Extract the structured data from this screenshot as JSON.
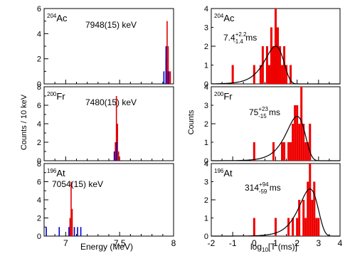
{
  "figure": {
    "left_ylabel": "Counts / 10 keV",
    "left_xlabel": "Energy (MeV)",
    "right_ylabel": "Counts",
    "right_xlabel": "log$_{10}$[T (ms)]"
  },
  "chart_data": [
    {
      "type": "bar",
      "panel": "energy",
      "nuclide": {
        "mass": "204",
        "symbol": "Ac"
      },
      "title": "7948(15) keV",
      "xlabel": "Energy (MeV)",
      "ylabel": "Counts / 10 keV",
      "xlim": [
        6.8,
        8.0
      ],
      "ylim": [
        0,
        6
      ],
      "bin_width": 0.01,
      "series": [
        {
          "color": "#e00000",
          "bins": [
            {
              "x": 7.93,
              "y": 2
            },
            {
              "x": 7.94,
              "y": 5
            },
            {
              "x": 7.95,
              "y": 3
            },
            {
              "x": 7.96,
              "y": 1
            },
            {
              "x": 7.97,
              "y": 1
            }
          ]
        },
        {
          "color": "#0000cc",
          "bins": [
            {
              "x": 7.91,
              "y": 1
            },
            {
              "x": 7.93,
              "y": 3
            },
            {
              "x": 7.95,
              "y": 1
            }
          ]
        }
      ]
    },
    {
      "type": "bar",
      "panel": "energy",
      "nuclide": {
        "mass": "200",
        "symbol": "Fr"
      },
      "title": "7480(15) keV",
      "xlim": [
        6.8,
        8.0
      ],
      "ylim": [
        0,
        8
      ],
      "bin_width": 0.01,
      "series": [
        {
          "color": "#e00000",
          "bins": [
            {
              "x": 7.46,
              "y": 2
            },
            {
              "x": 7.47,
              "y": 7
            },
            {
              "x": 7.48,
              "y": 4
            },
            {
              "x": 7.49,
              "y": 1
            }
          ]
        },
        {
          "color": "#0000cc",
          "bins": [
            {
              "x": 7.45,
              "y": 1
            },
            {
              "x": 7.47,
              "y": 2
            }
          ]
        }
      ]
    },
    {
      "type": "bar",
      "panel": "energy",
      "nuclide": {
        "mass": "196",
        "symbol": "At"
      },
      "title": "7054(15) keV",
      "xlim": [
        6.8,
        8.0
      ],
      "ylim": [
        0,
        8
      ],
      "xticks": [
        "7",
        "7.5",
        "8"
      ],
      "bin_width": 0.01,
      "series": [
        {
          "color": "#e00000",
          "bins": [
            {
              "x": 7.04,
              "y": 2
            },
            {
              "x": 7.05,
              "y": 6
            },
            {
              "x": 7.06,
              "y": 3
            }
          ]
        },
        {
          "color": "#0000cc",
          "bins": [
            {
              "x": 6.82,
              "y": 1
            },
            {
              "x": 6.94,
              "y": 1
            },
            {
              "x": 7.03,
              "y": 1
            },
            {
              "x": 7.08,
              "y": 1
            },
            {
              "x": 7.11,
              "y": 1
            },
            {
              "x": 7.14,
              "y": 1
            }
          ]
        }
      ]
    },
    {
      "type": "bar",
      "panel": "lifetime",
      "nuclide": {
        "mass": "204",
        "symbol": "Ac"
      },
      "halflife": {
        "base": "7.4",
        "sup": "+2.2",
        "sub": "-1.4",
        "unit": "ms"
      },
      "ylabel": "Counts",
      "xlim": [
        -2,
        4
      ],
      "ylim": [
        0,
        4
      ],
      "bin_width": 0.1,
      "bins": [
        {
          "x": -1.0,
          "y": 1
        },
        {
          "x": 0.0,
          "y": 1
        },
        {
          "x": 0.3,
          "y": 1
        },
        {
          "x": 0.4,
          "y": 2
        },
        {
          "x": 0.6,
          "y": 2
        },
        {
          "x": 0.7,
          "y": 1
        },
        {
          "x": 0.8,
          "y": 3
        },
        {
          "x": 0.9,
          "y": 2
        },
        {
          "x": 1.0,
          "y": 4
        },
        {
          "x": 1.1,
          "y": 3
        },
        {
          "x": 1.2,
          "y": 2
        },
        {
          "x": 1.3,
          "y": 1
        },
        {
          "x": 1.4,
          "y": 2
        },
        {
          "x": 1.5,
          "y": 1
        },
        {
          "x": 1.7,
          "y": 1
        }
      ],
      "fit_peak": {
        "center": 1.0,
        "height": 2.0
      }
    },
    {
      "type": "bar",
      "panel": "lifetime",
      "nuclide": {
        "mass": "200",
        "symbol": "Fr"
      },
      "halflife": {
        "base": "75",
        "sup": "+23",
        "sub": "-15",
        "unit": "ms"
      },
      "xlim": [
        -2,
        4
      ],
      "ylim": [
        0,
        4
      ],
      "bin_width": 0.1,
      "bins": [
        {
          "x": 0.0,
          "y": 1
        },
        {
          "x": 0.9,
          "y": 1
        },
        {
          "x": 1.3,
          "y": 1
        },
        {
          "x": 1.4,
          "y": 1
        },
        {
          "x": 1.6,
          "y": 1
        },
        {
          "x": 1.7,
          "y": 1
        },
        {
          "x": 1.8,
          "y": 2
        },
        {
          "x": 1.9,
          "y": 3
        },
        {
          "x": 2.0,
          "y": 3
        },
        {
          "x": 2.1,
          "y": 2
        },
        {
          "x": 2.2,
          "y": 4
        },
        {
          "x": 2.3,
          "y": 2
        },
        {
          "x": 2.4,
          "y": 1
        },
        {
          "x": 2.5,
          "y": 1
        },
        {
          "x": 2.6,
          "y": 2
        }
      ],
      "fit_peak": {
        "center": 2.0,
        "height": 2.4
      }
    },
    {
      "type": "bar",
      "panel": "lifetime",
      "nuclide": {
        "mass": "196",
        "symbol": "At"
      },
      "halflife": {
        "base": "314",
        "sup": "+94",
        "sub": "-59",
        "unit": "ms"
      },
      "xlabel": "log$_{10}$[T (ms)]",
      "xlim": [
        -2,
        4
      ],
      "ylim": [
        0,
        4
      ],
      "xticks": [
        "-2",
        "-1",
        "0",
        "1",
        "2",
        "3",
        "4"
      ],
      "bin_width": 0.1,
      "bins": [
        {
          "x": 0.0,
          "y": 1
        },
        {
          "x": 1.0,
          "y": 1
        },
        {
          "x": 1.6,
          "y": 1
        },
        {
          "x": 1.8,
          "y": 1
        },
        {
          "x": 2.0,
          "y": 1
        },
        {
          "x": 2.1,
          "y": 2
        },
        {
          "x": 2.3,
          "y": 2
        },
        {
          "x": 2.4,
          "y": 1
        },
        {
          "x": 2.5,
          "y": 3
        },
        {
          "x": 2.6,
          "y": 4
        },
        {
          "x": 2.7,
          "y": 2
        },
        {
          "x": 2.8,
          "y": 3
        },
        {
          "x": 2.9,
          "y": 1
        },
        {
          "x": 3.0,
          "y": 1
        }
      ],
      "fit_peak": {
        "center": 2.6,
        "height": 2.6
      }
    }
  ]
}
